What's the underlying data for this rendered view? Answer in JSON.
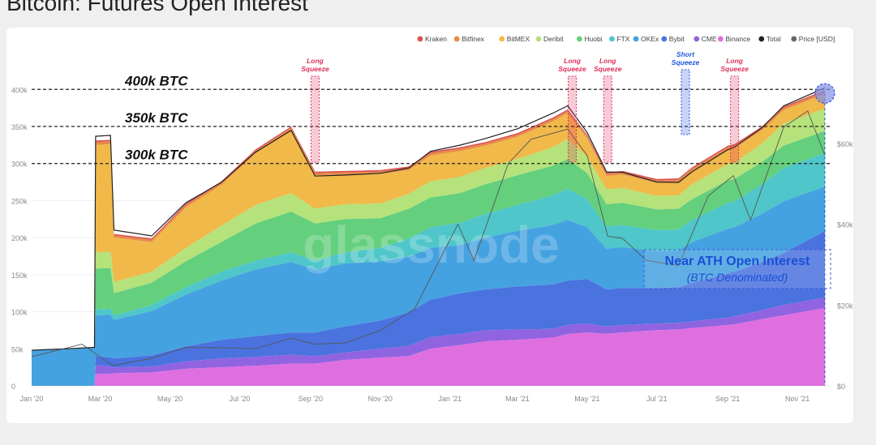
{
  "title": "Bitcoin: Futures Open Interest",
  "watermark": "glassnode",
  "chart_data": {
    "type": "area",
    "stacked": true,
    "x_labels": [
      "Jan '20",
      "Mar '20",
      "May '20",
      "Jul '20",
      "Sep '20",
      "Nov '20",
      "Jan '21",
      "Mar '21",
      "May '21",
      "Jul '21",
      "Sep '21",
      "Nov '21"
    ],
    "x_start": "2020-01-01",
    "x_end": "2021-11-30",
    "y_left": {
      "ticks": [
        "0",
        "50k",
        "100k",
        "150k",
        "200k",
        "250k",
        "300k",
        "350k",
        "400k"
      ],
      "range": [
        0,
        420000
      ]
    },
    "y_right": {
      "ticks": [
        "$0",
        "$20k",
        "$40k",
        "$60k"
      ],
      "range": [
        0,
        77000
      ],
      "label": "Price [USD]"
    },
    "legend": {
      "position": "top-right",
      "items": [
        {
          "name": "Kraken",
          "color": "#d9534f"
        },
        {
          "name": "Bitfinex",
          "color": "#e8894a"
        },
        {
          "name": "BitMEX",
          "color": "#f0b94a"
        },
        {
          "name": "Deribit",
          "color": "#b5e27a"
        },
        {
          "name": "Huobi",
          "color": "#64cf7d"
        },
        {
          "name": "FTX",
          "color": "#4fc6c9"
        },
        {
          "name": "OKEx",
          "color": "#45a2e0"
        },
        {
          "name": "Bybit",
          "color": "#4a73df"
        },
        {
          "name": "CME",
          "color": "#9064e0"
        },
        {
          "name": "Binance",
          "color": "#df6fdf"
        },
        {
          "name": "Total",
          "color": "#222222"
        },
        {
          "name": "Price [USD]",
          "color": "#666666"
        }
      ]
    },
    "stack_order": [
      "Binance",
      "CME",
      "Bybit",
      "OKEx",
      "FTX",
      "Huobi",
      "Deribit",
      "BitMEX",
      "Bitfinex",
      "Kraken"
    ],
    "dates": [
      "2020-01-01",
      "2020-02-01",
      "2020-02-25",
      "2020-02-26",
      "2020-03-10",
      "2020-03-13",
      "2020-04-15",
      "2020-05-15",
      "2020-06-15",
      "2020-07-15",
      "2020-08-15",
      "2020-09-05",
      "2020-10-01",
      "2020-11-01",
      "2020-11-26",
      "2020-12-15",
      "2021-01-10",
      "2021-02-01",
      "2021-03-01",
      "2021-04-01",
      "2021-04-14",
      "2021-05-01",
      "2021-05-18",
      "2021-06-01",
      "2021-07-01",
      "2021-07-20",
      "2021-08-01",
      "2021-09-01",
      "2021-09-07",
      "2021-10-01",
      "2021-10-20",
      "2021-11-25"
    ],
    "series": [
      {
        "name": "Binance",
        "values": [
          0,
          0,
          0,
          16000,
          16000,
          17000,
          18000,
          23000,
          25000,
          27000,
          30000,
          30000,
          35000,
          38000,
          40000,
          50000,
          55000,
          60000,
          62000,
          65000,
          70000,
          72000,
          70000,
          72000,
          75000,
          76000,
          78000,
          82000,
          83000,
          90000,
          95000,
          105000
        ]
      },
      {
        "name": "CME",
        "values": [
          0,
          0,
          0,
          12000,
          10000,
          8000,
          8000,
          10000,
          12000,
          12000,
          12000,
          10000,
          10000,
          12000,
          14000,
          16000,
          15000,
          15000,
          14000,
          12000,
          12000,
          12000,
          10000,
          10000,
          9000,
          9000,
          9000,
          10000,
          11000,
          12000,
          14000,
          14000
        ]
      },
      {
        "name": "Bybit",
        "values": [
          0,
          0,
          0,
          12000,
          12000,
          12000,
          15000,
          20000,
          25000,
          28000,
          30000,
          32000,
          35000,
          38000,
          45000,
          50000,
          55000,
          55000,
          58000,
          60000,
          60000,
          60000,
          50000,
          50000,
          48000,
          48000,
          52000,
          60000,
          60000,
          65000,
          70000,
          90000
        ]
      },
      {
        "name": "OKEx",
        "values": [
          48000,
          50000,
          52000,
          55000,
          58000,
          52000,
          60000,
          70000,
          80000,
          90000,
          95000,
          85000,
          85000,
          80000,
          75000,
          70000,
          65000,
          70000,
          75000,
          80000,
          82000,
          70000,
          55000,
          55000,
          50000,
          50000,
          55000,
          60000,
          60000,
          65000,
          70000,
          60000
        ]
      },
      {
        "name": "FTX",
        "values": [
          0,
          0,
          0,
          8000,
          8000,
          6000,
          8000,
          10000,
          12000,
          12000,
          13000,
          12000,
          15000,
          18000,
          25000,
          28000,
          30000,
          32000,
          35000,
          40000,
          42000,
          38000,
          30000,
          30000,
          28000,
          28000,
          30000,
          35000,
          35000,
          40000,
          45000,
          45000
        ]
      },
      {
        "name": "Huobi",
        "values": [
          0,
          0,
          0,
          55000,
          55000,
          30000,
          30000,
          35000,
          40000,
          50000,
          55000,
          50000,
          45000,
          40000,
          40000,
          40000,
          40000,
          40000,
          40000,
          40000,
          40000,
          35000,
          30000,
          30000,
          28000,
          28000,
          28000,
          30000,
          30000,
          30000,
          30000,
          30000
        ]
      },
      {
        "name": "Deribit",
        "values": [
          0,
          0,
          0,
          22000,
          22000,
          15000,
          15000,
          18000,
          22000,
          25000,
          25000,
          20000,
          20000,
          20000,
          20000,
          22000,
          22000,
          22000,
          22000,
          25000,
          27000,
          22000,
          20000,
          20000,
          18000,
          18000,
          20000,
          22000,
          22000,
          25000,
          30000,
          30000
        ]
      },
      {
        "name": "BitMEX",
        "values": [
          0,
          0,
          0,
          145000,
          145000,
          60000,
          40000,
          55000,
          55000,
          70000,
          85000,
          45000,
          40000,
          40000,
          32000,
          35000,
          35000,
          30000,
          30000,
          35000,
          35000,
          25000,
          18000,
          18000,
          18000,
          18000,
          18000,
          20000,
          20000,
          18000,
          18000,
          20000
        ]
      },
      {
        "name": "Bitfinex",
        "values": [
          0,
          0,
          0,
          4000,
          4000,
          3000,
          3000,
          3000,
          3000,
          3000,
          3000,
          3000,
          3000,
          3000,
          3000,
          3000,
          3000,
          3000,
          3000,
          3000,
          3000,
          3000,
          3000,
          3000,
          3000,
          3000,
          3000,
          3000,
          3000,
          3000,
          3000,
          3000
        ]
      },
      {
        "name": "Kraken",
        "values": [
          0,
          0,
          0,
          2000,
          2000,
          2000,
          2000,
          2000,
          2000,
          2000,
          2000,
          2000,
          2000,
          2000,
          2000,
          2000,
          2000,
          2000,
          2000,
          2000,
          2000,
          2000,
          2000,
          2000,
          2000,
          2000,
          2000,
          2000,
          2000,
          2000,
          2000,
          2000
        ]
      }
    ],
    "total": [
      48000,
      50000,
      52000,
      331000,
      332000,
      205000,
      199000,
      246000,
      276000,
      319000,
      350000,
      289000,
      290000,
      291000,
      296000,
      316000,
      322000,
      329000,
      341000,
      362000,
      373000,
      339000,
      288000,
      290000,
      279000,
      280000,
      295000,
      324000,
      326000,
      350000,
      377000,
      399000
    ],
    "price": {
      "dates": [
        "2020-01-01",
        "2020-02-14",
        "2020-03-12",
        "2020-04-15",
        "2020-05-15",
        "2020-06-15",
        "2020-07-15",
        "2020-08-15",
        "2020-09-05",
        "2020-10-01",
        "2020-11-01",
        "2020-12-01",
        "2021-01-08",
        "2021-01-22",
        "2021-02-21",
        "2021-03-13",
        "2021-04-14",
        "2021-05-01",
        "2021-05-19",
        "2021-06-01",
        "2021-06-22",
        "2021-07-20",
        "2021-08-15",
        "2021-09-06",
        "2021-09-21",
        "2021-10-20",
        "2021-11-10",
        "2021-11-25"
      ],
      "values": [
        7200,
        10300,
        5000,
        6800,
        9500,
        9400,
        9200,
        11800,
        10300,
        10600,
        13700,
        19000,
        40000,
        31000,
        55000,
        61000,
        63500,
        57000,
        37000,
        36500,
        31000,
        29800,
        47000,
        52000,
        41000,
        64000,
        68000,
        57000
      ]
    },
    "reference_lines": [
      {
        "value": 400000,
        "label": "400k BTC"
      },
      {
        "value": 350000,
        "label": "350k BTC"
      },
      {
        "value": 300000,
        "label": "300k BTC"
      }
    ],
    "annotations": [
      {
        "type": "long",
        "date": "2020-09-05",
        "text": [
          "Long",
          "Squeeze"
        ],
        "color": "#e0305a"
      },
      {
        "type": "long",
        "date": "2021-04-18",
        "text": [
          "Long",
          "Squeeze"
        ],
        "color": "#e0305a"
      },
      {
        "type": "long",
        "date": "2021-05-19",
        "text": [
          "Long",
          "Squeeze"
        ],
        "color": "#e0305a"
      },
      {
        "type": "short",
        "date": "2021-07-26",
        "text": [
          "Short",
          "Squeeze"
        ],
        "color": "#2255dd"
      },
      {
        "type": "long",
        "date": "2021-09-07",
        "text": [
          "Long",
          "Squeeze"
        ],
        "color": "#e0305a"
      }
    ],
    "callout": {
      "line1": "Near ATH Open Interest",
      "line2": "(BTC Denominated)",
      "color": "#1a4fd6"
    }
  }
}
